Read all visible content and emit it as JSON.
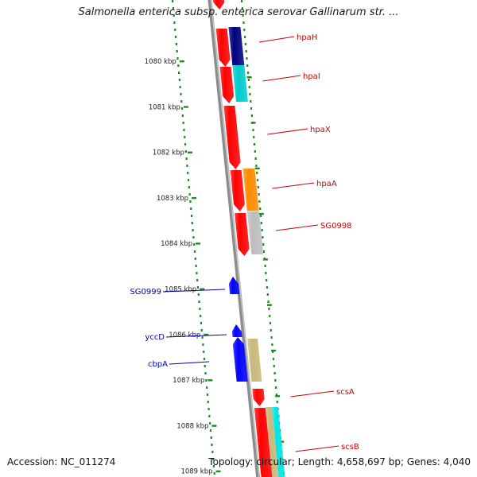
{
  "title": "Salmonella enterica subsp. enterica serovar Gallinarum str. ...",
  "footer": {
    "accession_label": "Accession:",
    "accession": "NC_011274",
    "topology_label": "Topology:",
    "topology": "circular",
    "length_label": "Length:",
    "length": "4,658,697 bp",
    "genes_label": "Genes:",
    "genes": "4,040"
  },
  "colors": {
    "backbone": "#8c8c8c",
    "ticks": "#1e8c1e",
    "forward_label": "#cc0000",
    "reverse_label": "#0000aa"
  },
  "scale": {
    "unit": "kbp",
    "ticks": [
      "1080 kbp",
      "1081 kbp",
      "1082 kbp",
      "1083 kbp",
      "1084 kbp",
      "1085 kbp",
      "1086 kbp",
      "1087 kbp",
      "1088 kbp",
      "1089 kbp"
    ]
  },
  "genes": {
    "forward": [
      {
        "label": "hpaH",
        "color": "#000080"
      },
      {
        "label": "hpaI",
        "color": "#00cccc"
      },
      {
        "label": "hpaX",
        "color": "#ff0000"
      },
      {
        "label": "hpaA",
        "color": "#ff8c00"
      },
      {
        "label": "SG0998",
        "color": "#bdbdbd"
      },
      {
        "label": "scsA",
        "color": "#ff0000"
      },
      {
        "label": "scsB",
        "color": "#00e5e5"
      }
    ],
    "reverse": [
      {
        "label": "SG0999",
        "color": "#0000ff"
      },
      {
        "label": "yccD",
        "color": "#0000ff"
      },
      {
        "label": "cbpA",
        "color": "#0000ff"
      }
    ]
  }
}
